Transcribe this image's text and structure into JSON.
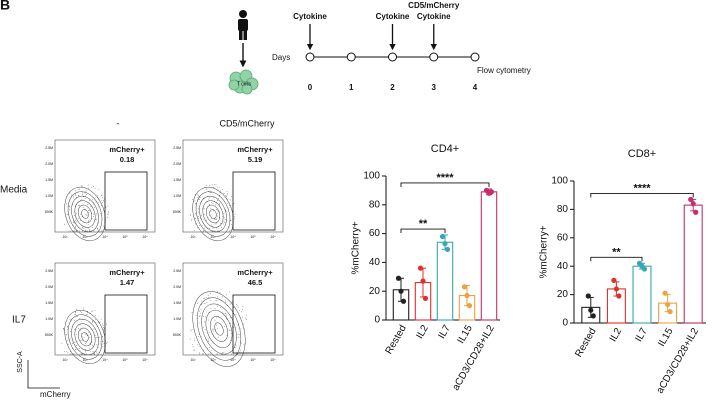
{
  "panel_label": "B",
  "schematic": {
    "cell_label": "T cells",
    "days_label": "Days",
    "days": [
      0,
      1,
      2,
      3,
      4
    ],
    "events": [
      {
        "day": 0,
        "labels": [
          "Cytokine"
        ]
      },
      {
        "day": 2,
        "labels": [
          "Cytokine"
        ]
      },
      {
        "day": 3,
        "labels": [
          "CD5/mCherry",
          "Cytokine"
        ]
      }
    ],
    "readout": {
      "day": 4,
      "label": "Flow cytometry"
    }
  },
  "flow": {
    "columns": [
      "-",
      "CD5/mCherry"
    ],
    "rows": [
      "Media",
      "IL7"
    ],
    "gate_label": "mCherry+",
    "values": [
      [
        "0.18",
        "5.19"
      ],
      [
        "1.47",
        "46.5"
      ]
    ],
    "x_label": "mCherry",
    "y_label": "SSC-A",
    "yticks": [
      "2.5M",
      "2.0M",
      "1.5M",
      "1.0M",
      "500K"
    ],
    "xticks": [
      "10²",
      "10³",
      "10⁴",
      "10⁵",
      "10⁶"
    ]
  },
  "chart_data": [
    {
      "type": "bar",
      "title": "CD4+",
      "y_label": "%mCherry+",
      "categories": [
        "Rested",
        "IL2",
        "IL7",
        "IL15",
        "aCD3/CD28+IL2"
      ],
      "values": [
        21,
        26,
        54,
        17,
        89
      ],
      "errors": [
        8,
        10,
        5,
        7,
        2
      ],
      "points": [
        [
          29,
          20,
          13
        ],
        [
          36,
          27,
          15
        ],
        [
          58,
          53,
          49
        ],
        [
          23,
          17,
          10
        ],
        [
          90,
          88,
          89
        ]
      ],
      "colors": [
        "#222222",
        "#e0302e",
        "#35a7b5",
        "#eba145",
        "#c42f6b"
      ],
      "ylim": [
        0,
        100
      ],
      "yticks": [
        0,
        20,
        40,
        60,
        80,
        100
      ],
      "significance": [
        {
          "label": "**",
          "between": [
            0,
            2
          ]
        },
        {
          "label": "****",
          "between": [
            0,
            4
          ]
        }
      ]
    },
    {
      "type": "bar",
      "title": "CD8+",
      "y_label": "%mCherry+",
      "categories": [
        "Rested",
        "IL2",
        "IL7",
        "IL15",
        "aCD3/CD28+IL2"
      ],
      "values": [
        11,
        24,
        40,
        14,
        83
      ],
      "errors": [
        7,
        5,
        2,
        6,
        4
      ],
      "points": [
        [
          19,
          9,
          5
        ],
        [
          30,
          24,
          19
        ],
        [
          42,
          40,
          38
        ],
        [
          21,
          13,
          8
        ],
        [
          87,
          84,
          78
        ]
      ],
      "colors": [
        "#222222",
        "#e0302e",
        "#35a7b5",
        "#eba145",
        "#c42f6b"
      ],
      "ylim": [
        0,
        100
      ],
      "yticks": [
        0,
        20,
        40,
        60,
        80,
        100
      ],
      "significance": [
        {
          "label": "**",
          "between": [
            0,
            2
          ]
        },
        {
          "label": "****",
          "between": [
            0,
            4
          ]
        }
      ]
    }
  ]
}
